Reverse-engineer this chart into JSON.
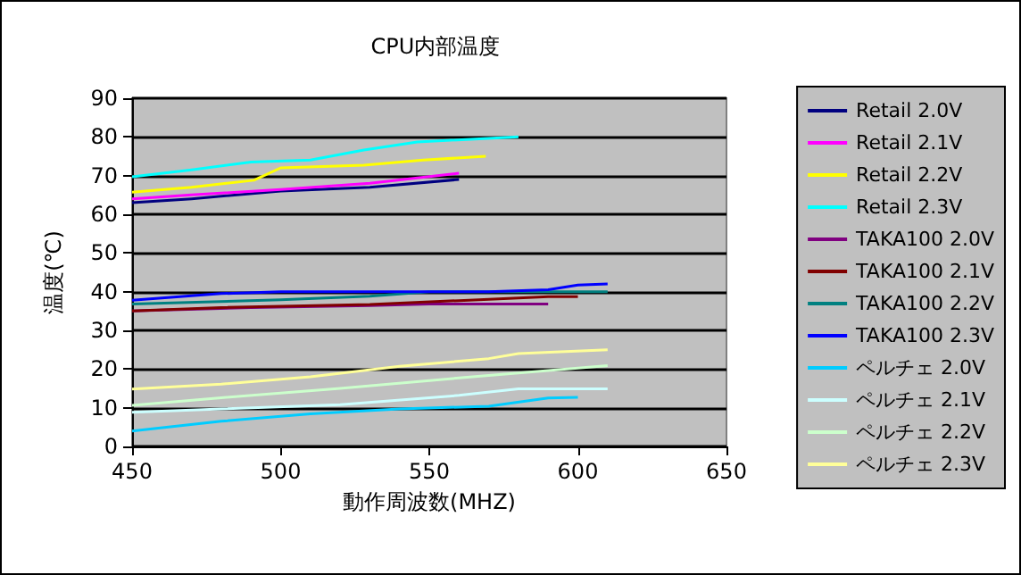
{
  "chart_data": {
    "type": "line",
    "title": "CPU内部温度",
    "xlabel": "動作周波数(MHZ)",
    "ylabel": "温度(℃)",
    "xlim": [
      450,
      650
    ],
    "xticks": [
      450,
      500,
      550,
      600,
      650
    ],
    "ylim": [
      0,
      90
    ],
    "yticks": [
      0,
      10,
      20,
      30,
      40,
      50,
      60,
      70,
      80,
      90
    ],
    "grid": "y",
    "legend": "right",
    "marker": "none",
    "line_style": "solid",
    "series": [
      {
        "name": "Retail 2.0V",
        "color": "#000080",
        "x": [
          450,
          470,
          500,
          530,
          560
        ],
        "values": [
          63,
          64,
          66,
          67,
          69
        ]
      },
      {
        "name": "Retail 2.1V",
        "color": "#ff00ff",
        "x": [
          450,
          470,
          500,
          530,
          560
        ],
        "values": [
          64,
          65,
          66.4,
          68,
          70.6
        ]
      },
      {
        "name": "Retail 2.2V",
        "color": "#ffff00",
        "x": [
          450,
          470,
          491,
          500,
          528,
          548,
          569
        ],
        "values": [
          65.7,
          67,
          68.8,
          72,
          72.7,
          74,
          75
        ]
      },
      {
        "name": "Retail 2.3V",
        "color": "#00ffff",
        "x": [
          450,
          470,
          490,
          510,
          528,
          546,
          580
        ],
        "values": [
          69.7,
          71.5,
          73.5,
          74,
          76.6,
          78.7,
          80
        ]
      },
      {
        "name": "TAKA100 2.0V",
        "color": "#800080",
        "x": [
          450,
          490,
          530,
          550,
          590
        ],
        "values": [
          35,
          35.9,
          36.4,
          36.8,
          36.8
        ]
      },
      {
        "name": "TAKA100 2.1V",
        "color": "#800000",
        "x": [
          450,
          480,
          530,
          560,
          590,
          600
        ],
        "values": [
          35,
          35.9,
          36.7,
          37.7,
          38.7,
          38.7
        ]
      },
      {
        "name": "TAKA100 2.2V",
        "color": "#008080",
        "x": [
          450,
          500,
          530,
          550,
          610
        ],
        "values": [
          36.8,
          37.9,
          38.8,
          40,
          40
        ]
      },
      {
        "name": "TAKA100 2.3V",
        "color": "#0000ff",
        "x": [
          450,
          480,
          500,
          570,
          590,
          600,
          610
        ],
        "values": [
          37.8,
          39.5,
          40,
          40,
          40.5,
          41.7,
          42
        ]
      },
      {
        "name": "ペルチェ 2.0V",
        "color": "#00ccff",
        "x": [
          450,
          480,
          510,
          540,
          570,
          590,
          600
        ],
        "values": [
          4,
          6.5,
          8.4,
          9.7,
          10.4,
          12.5,
          12.7
        ]
      },
      {
        "name": "ペルチェ 2.1V",
        "color": "#ccffff",
        "x": [
          450,
          480,
          520,
          560,
          580,
          610
        ],
        "values": [
          8.8,
          9.7,
          10.8,
          13.2,
          14.9,
          14.9
        ]
      },
      {
        "name": "ペルチェ 2.2V",
        "color": "#ccffcc",
        "x": [
          450,
          480,
          520,
          560,
          590,
          610
        ],
        "values": [
          10.6,
          12.6,
          15,
          17.7,
          19.6,
          20.9
        ]
      },
      {
        "name": "ペルチェ 2.3V",
        "color": "#ffff99",
        "x": [
          450,
          480,
          510,
          540,
          570,
          580,
          610
        ],
        "values": [
          14.8,
          16.1,
          18,
          20.7,
          22.7,
          24,
          25
        ]
      }
    ]
  }
}
